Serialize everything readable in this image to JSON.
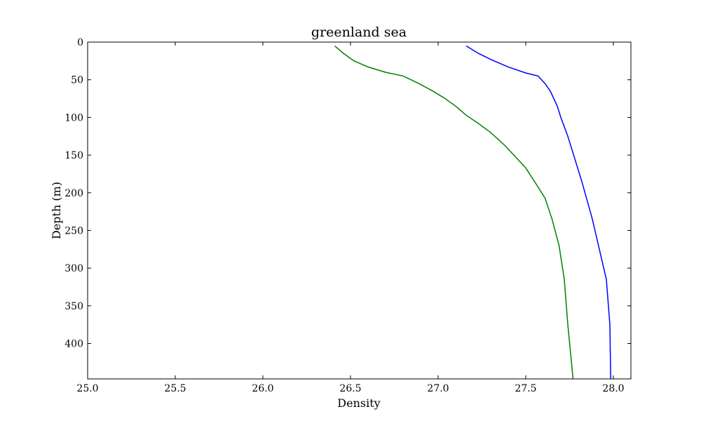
{
  "chart_data": {
    "type": "line",
    "title": "greenland sea",
    "xlabel": "Density",
    "ylabel": "Depth (m)",
    "xlim": [
      25.0,
      28.1
    ],
    "ylim": [
      447,
      0
    ],
    "y_inverted": true,
    "grid": false,
    "legend": "none",
    "x_ticks": [
      {
        "value": 25.0,
        "label": "25.0"
      },
      {
        "value": 25.5,
        "label": "25.5"
      },
      {
        "value": 26.0,
        "label": "26.0"
      },
      {
        "value": 26.5,
        "label": "26.5"
      },
      {
        "value": 27.0,
        "label": "27.0"
      },
      {
        "value": 27.5,
        "label": "27.5"
      },
      {
        "value": 28.0,
        "label": "28.0"
      }
    ],
    "y_ticks": [
      {
        "value": 0,
        "label": "0"
      },
      {
        "value": 50,
        "label": "50"
      },
      {
        "value": 100,
        "label": "100"
      },
      {
        "value": 150,
        "label": "150"
      },
      {
        "value": 200,
        "label": "200"
      },
      {
        "value": 250,
        "label": "250"
      },
      {
        "value": 300,
        "label": "300"
      },
      {
        "value": 350,
        "label": "350"
      },
      {
        "value": 400,
        "label": "400"
      }
    ],
    "series": [
      {
        "color": "#0000ff",
        "points": [
          [
            27.16,
            5
          ],
          [
            27.23,
            15
          ],
          [
            27.3,
            23
          ],
          [
            27.4,
            33
          ],
          [
            27.5,
            41
          ],
          [
            27.57,
            45
          ],
          [
            27.61,
            55
          ],
          [
            27.64,
            65
          ],
          [
            27.66,
            75
          ],
          [
            27.68,
            85
          ],
          [
            27.7,
            100
          ],
          [
            27.74,
            125
          ],
          [
            27.78,
            155
          ],
          [
            27.82,
            185
          ],
          [
            27.88,
            235
          ],
          [
            27.92,
            275
          ],
          [
            27.96,
            315
          ],
          [
            27.98,
            375
          ],
          [
            27.985,
            447
          ]
        ]
      },
      {
        "color": "#008000",
        "points": [
          [
            26.41,
            5
          ],
          [
            26.46,
            15
          ],
          [
            26.52,
            25
          ],
          [
            26.6,
            33
          ],
          [
            26.7,
            40
          ],
          [
            26.8,
            45
          ],
          [
            26.89,
            55
          ],
          [
            26.97,
            65
          ],
          [
            27.04,
            75
          ],
          [
            27.1,
            85
          ],
          [
            27.16,
            97
          ],
          [
            27.23,
            108
          ],
          [
            27.3,
            120
          ],
          [
            27.38,
            137
          ],
          [
            27.46,
            157
          ],
          [
            27.5,
            167
          ],
          [
            27.55,
            185
          ],
          [
            27.61,
            207
          ],
          [
            27.65,
            235
          ],
          [
            27.69,
            270
          ],
          [
            27.72,
            315
          ],
          [
            27.74,
            375
          ],
          [
            27.77,
            447
          ]
        ]
      }
    ]
  }
}
